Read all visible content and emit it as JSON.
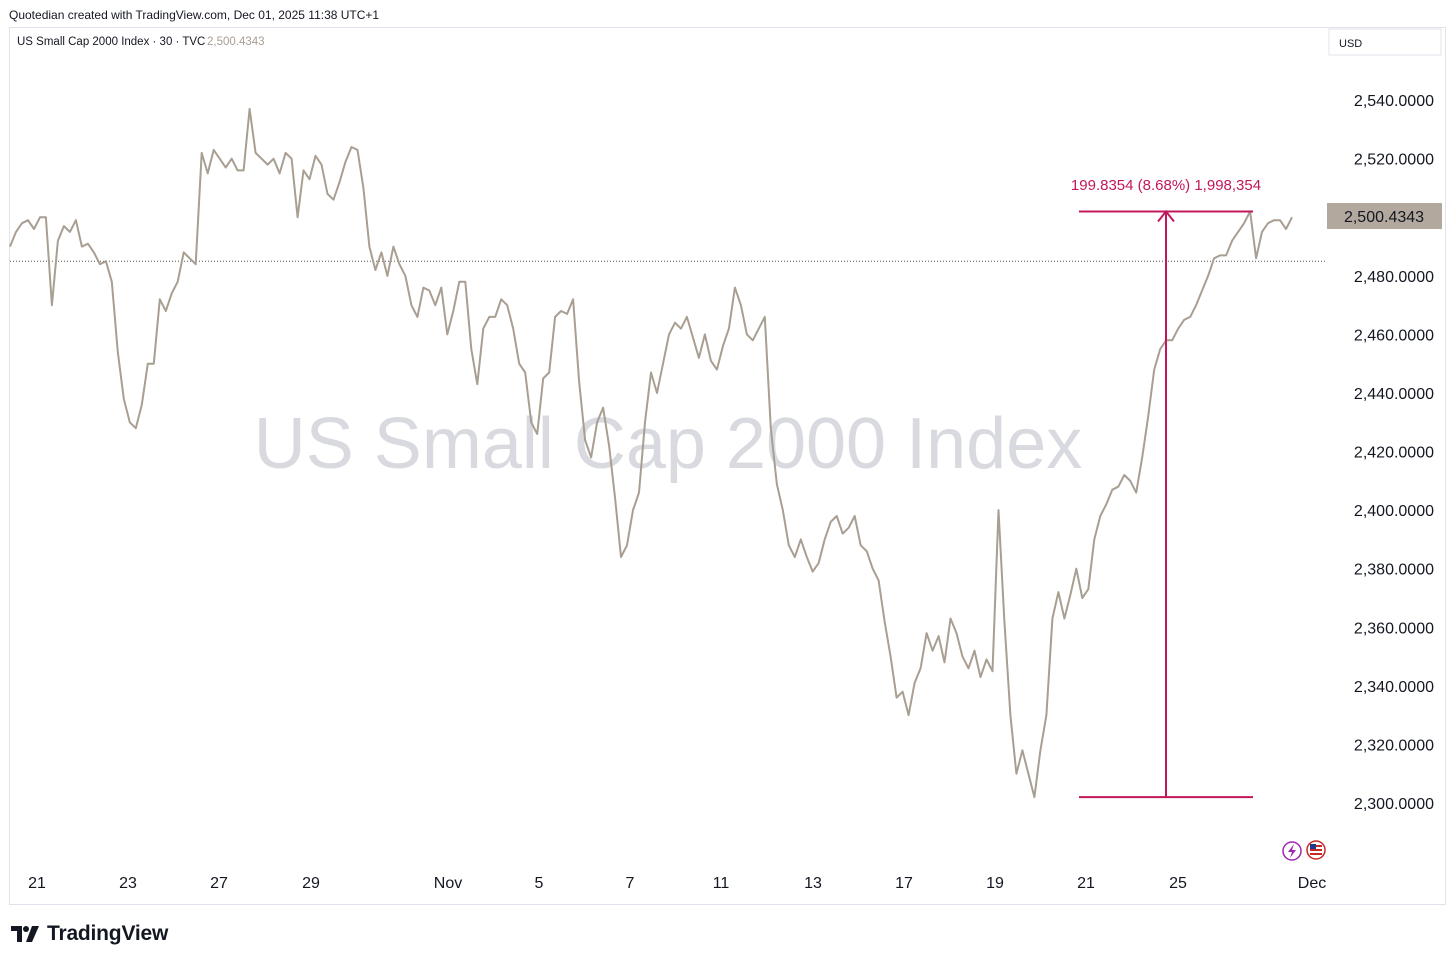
{
  "credit": "Quotedian created with TradingView.com, Dec 01, 2025 11:38 UTC+1",
  "footer": {
    "brand": "TradingView"
  },
  "legend": {
    "symbol": "US Small Cap 2000 Index · 30 · TVC",
    "last_value": "2,500.4343"
  },
  "watermark": "US Small Cap 2000 Index",
  "currency_label": "USD",
  "price_badge": "2,500.4343",
  "measurement": {
    "label": "199.8354 (8.68%) 1,998,354",
    "color": "#c2185b"
  },
  "colors": {
    "line": "#a99e92",
    "badge_bg": "#b2a89d",
    "measure": "#c2185b"
  },
  "icons": [
    "lightning-icon",
    "us-flag-icon"
  ],
  "chart_data": {
    "type": "line",
    "title": "US Small Cap 2000 Index · 30 · TVC",
    "xlabel": "",
    "ylabel": "",
    "ylim": [
      2290,
      2555
    ],
    "y_ticks": [
      2540,
      2520,
      2480,
      2460,
      2440,
      2420,
      2400,
      2380,
      2360,
      2340,
      2320,
      2300
    ],
    "y_tick_labels": [
      "2,540.0000",
      "2,520.0000",
      "2,480.0000",
      "2,460.0000",
      "2,440.0000",
      "2,420.0000",
      "2,400.0000",
      "2,380.0000",
      "2,360.0000",
      "2,340.0000",
      "2,320.0000",
      "2,300.0000"
    ],
    "x_ticks": [
      "21",
      "23",
      "27",
      "29",
      "Nov",
      "5",
      "7",
      "11",
      "13",
      "17",
      "19",
      "21",
      "25",
      "Dec"
    ],
    "reference_level": 2485,
    "last_value": 2500.4343,
    "measure_range": {
      "low": 2302,
      "high": 2502,
      "change": "199.8354",
      "percent": "8.68%",
      "volume": "1,998,354"
    },
    "grid": false,
    "series": [
      {
        "values": [
          2490,
          2495,
          2498,
          2499,
          2496,
          2500,
          2500,
          2470,
          2492,
          2497,
          2495,
          2499,
          2490,
          2491,
          2488,
          2484,
          2485,
          2478,
          2454,
          2438,
          2430,
          2428,
          2436,
          2450,
          2450,
          2472,
          2468,
          2474,
          2478,
          2488,
          2486,
          2484,
          2522,
          2515,
          2523,
          2520,
          2517,
          2520,
          2516,
          2516,
          2537,
          2522,
          2520,
          2518,
          2520,
          2515,
          2522,
          2520,
          2500,
          2516,
          2513,
          2521,
          2518,
          2508,
          2506,
          2512,
          2519,
          2524,
          2523,
          2510,
          2490,
          2482,
          2488,
          2480,
          2490,
          2484,
          2480,
          2470,
          2466,
          2476,
          2475,
          2470,
          2476,
          2460,
          2468,
          2478,
          2478,
          2455,
          2443,
          2462,
          2466,
          2466,
          2472,
          2470,
          2462,
          2450,
          2447,
          2430,
          2426,
          2445,
          2447,
          2466,
          2468,
          2467,
          2472,
          2444,
          2424,
          2418,
          2430,
          2435,
          2422,
          2404,
          2384,
          2388,
          2400,
          2406,
          2430,
          2447,
          2440,
          2450,
          2460,
          2464,
          2462,
          2466,
          2459,
          2452,
          2460,
          2451,
          2448,
          2456,
          2462,
          2476,
          2470,
          2460,
          2458,
          2462,
          2466,
          2428,
          2409,
          2400,
          2388,
          2384,
          2390,
          2384,
          2379,
          2382,
          2390,
          2396,
          2398,
          2392,
          2394,
          2398,
          2388,
          2386,
          2380,
          2376,
          2362,
          2350,
          2336,
          2338,
          2330,
          2341,
          2346,
          2358,
          2352,
          2357,
          2348,
          2363,
          2358,
          2350,
          2346,
          2352,
          2343,
          2349,
          2345,
          2400,
          2362,
          2330,
          2310,
          2318,
          2310,
          2302,
          2318,
          2330,
          2363,
          2372,
          2363,
          2371,
          2380,
          2370,
          2373,
          2390,
          2398,
          2402,
          2407,
          2408,
          2412,
          2410,
          2406,
          2418,
          2432,
          2448,
          2455,
          2458,
          2458,
          2462,
          2465,
          2466,
          2470,
          2475,
          2480,
          2486,
          2487,
          2487,
          2492,
          2495,
          2498,
          2502,
          2486,
          2495,
          2498,
          2499,
          2499,
          2496,
          2500
        ]
      }
    ]
  }
}
